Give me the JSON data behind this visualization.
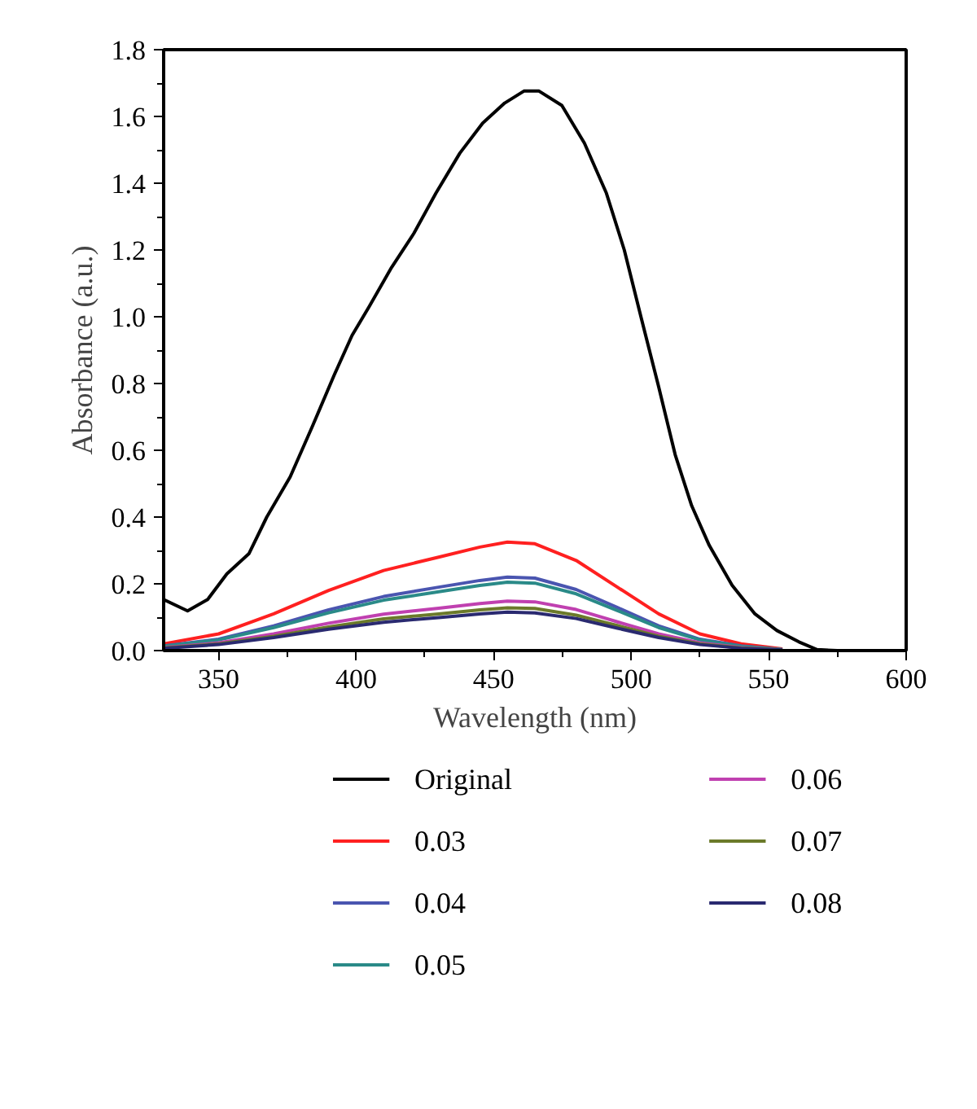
{
  "chart_data": {
    "type": "line",
    "xlabel": "Wavelength (nm)",
    "ylabel": "Absorbance (a.u.)",
    "xlim": [
      330,
      600
    ],
    "xticks": [
      350,
      400,
      450,
      500,
      550,
      600
    ],
    "ylim": [
      0,
      1.8
    ],
    "yticks": [
      "0.0",
      0.2,
      0.4,
      0.6,
      0.8,
      "1.0",
      1.2,
      1.4,
      1.6,
      1.8
    ],
    "grid": false,
    "legend": "bottom",
    "line_style": "solid",
    "marker": "none",
    "series": [
      {
        "name": "Original",
        "color": "#000000",
        "x": [
          330,
          338.7,
          346,
          353,
          361,
          367.5,
          376,
          384,
          392,
          398.5,
          404.7,
          412.9,
          421,
          429,
          437.7,
          446,
          454,
          461,
          466.5,
          474.8,
          483,
          491,
          497.5,
          503.7,
          510,
          516,
          522,
          528.4,
          536.7,
          545,
          553,
          561,
          567.6,
          575,
          600
        ],
        "values": [
          0.153,
          0.119,
          0.153,
          0.23,
          0.29,
          0.4,
          0.52,
          0.67,
          0.825,
          0.944,
          1.03,
          1.148,
          1.25,
          1.37,
          1.49,
          1.58,
          1.64,
          1.676,
          1.676,
          1.633,
          1.52,
          1.37,
          1.2,
          0.995,
          0.79,
          0.587,
          0.434,
          0.315,
          0.196,
          0.11,
          0.06,
          0.026,
          0.003,
          0,
          0
        ]
      },
      {
        "name": "0.03",
        "color": "#ff2020",
        "values": [
          0.02,
          0.05,
          0.11,
          0.18,
          0.24,
          0.28,
          0.31,
          0.325,
          0.32,
          0.27,
          0.19,
          0.11,
          0.05,
          0.02,
          0.005
        ]
      },
      {
        "name": "0.04",
        "color": "#4a55b0",
        "values": [
          0.014,
          0.034,
          0.074,
          0.122,
          0.162,
          0.19,
          0.21,
          0.22,
          0.217,
          0.183,
          0.129,
          0.074,
          0.034,
          0.014,
          0.003
        ]
      },
      {
        "name": "0.05",
        "color": "#2a8a88",
        "values": [
          0.013,
          0.032,
          0.069,
          0.113,
          0.151,
          0.176,
          0.195,
          0.205,
          0.202,
          0.17,
          0.12,
          0.069,
          0.032,
          0.013,
          0.003
        ]
      },
      {
        "name": "0.06",
        "color": "#c040b0",
        "values": [
          0.009,
          0.023,
          0.05,
          0.082,
          0.109,
          0.127,
          0.141,
          0.148,
          0.146,
          0.123,
          0.086,
          0.05,
          0.023,
          0.009,
          0.002
        ]
      },
      {
        "name": "0.07",
        "color": "#6b7a2a",
        "values": [
          0.008,
          0.02,
          0.043,
          0.071,
          0.095,
          0.11,
          0.122,
          0.128,
          0.126,
          0.106,
          0.075,
          0.043,
          0.02,
          0.008,
          0.002
        ]
      },
      {
        "name": "0.08",
        "color": "#2a2a70",
        "values": [
          0.007,
          0.018,
          0.039,
          0.064,
          0.085,
          0.099,
          0.11,
          0.115,
          0.113,
          0.096,
          0.067,
          0.039,
          0.018,
          0.007,
          0.002
        ]
      }
    ],
    "x": [
      330,
      350,
      370,
      390,
      410,
      430,
      445,
      455,
      465,
      480,
      495,
      510,
      525,
      540,
      555
    ]
  }
}
